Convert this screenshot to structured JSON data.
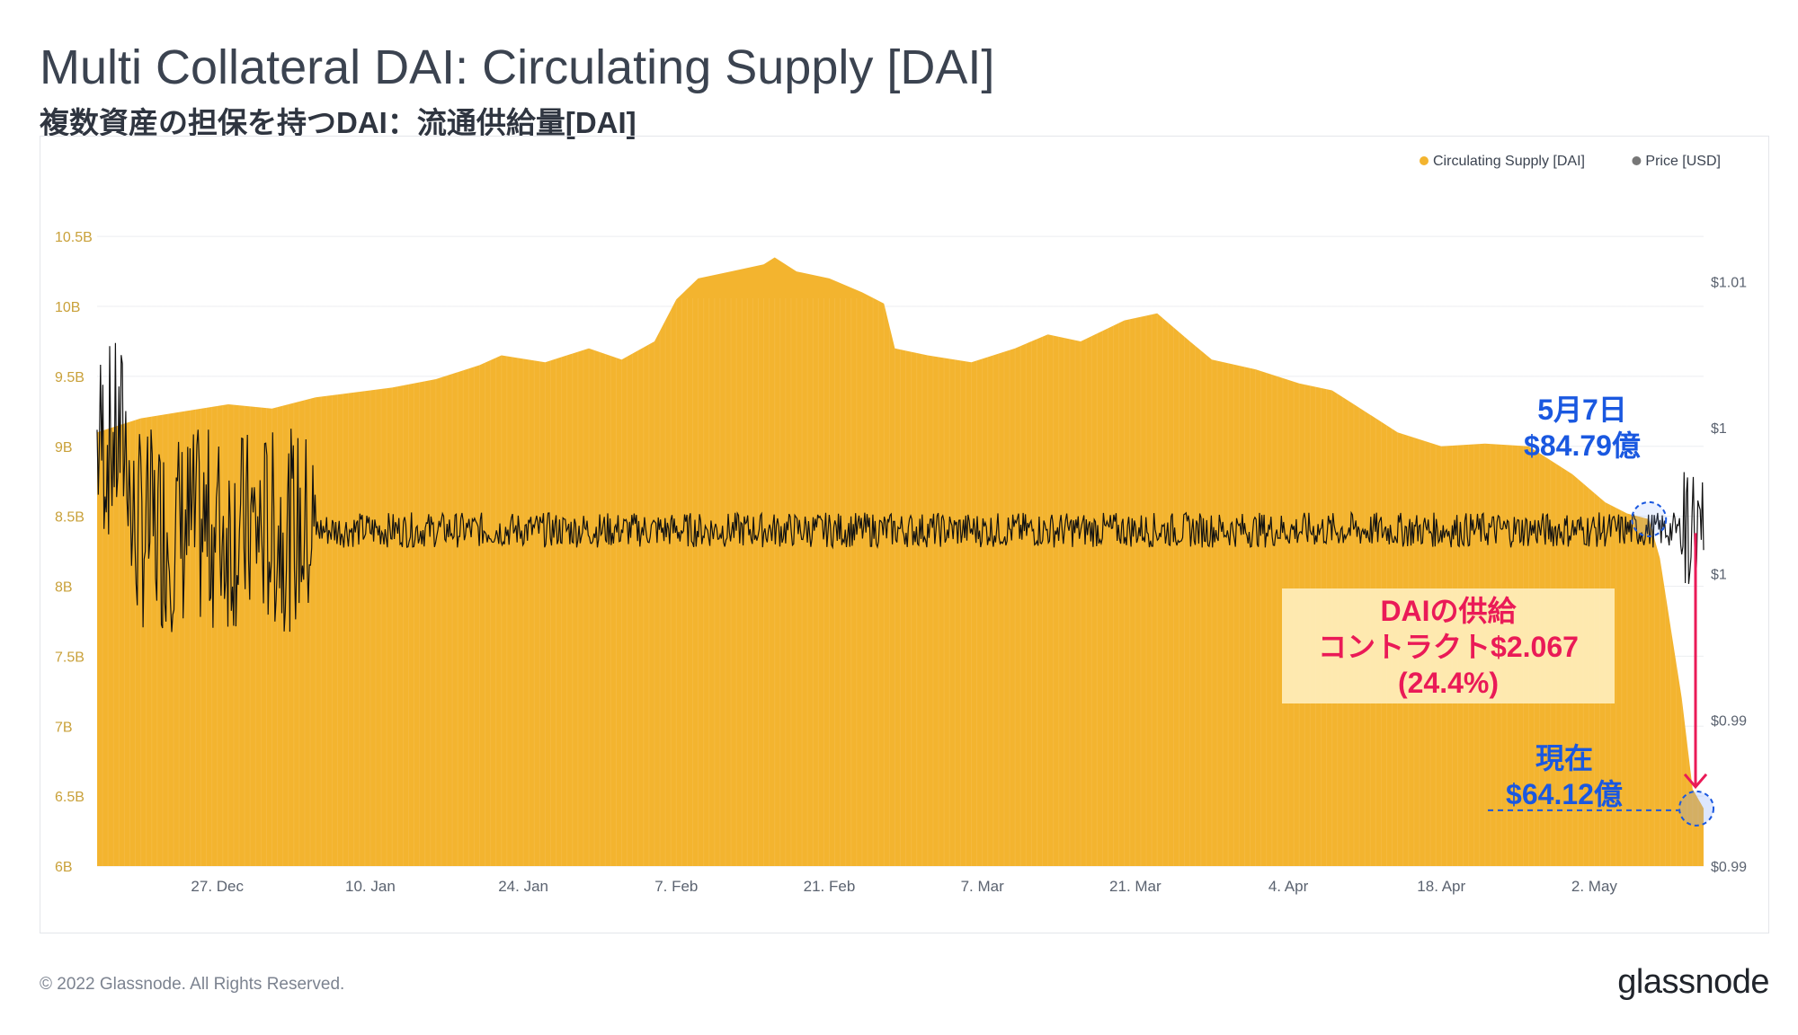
{
  "header": {
    "title": "Multi Collateral DAI: Circulating Supply [DAI]",
    "subtitle": "複数資産の担保を持つDAI：流通供給量[DAI]"
  },
  "footer": {
    "copyright": "© 2022 Glassnode. All Rights Reserved.",
    "logo": "glassnode"
  },
  "annotations": {
    "may7_date": "5月7日",
    "may7_value": "$84.79億",
    "drop_line1": "DAIの供給",
    "drop_line2": "コントラクト$2.067",
    "drop_line3": "(24.4%)",
    "now_label": "現在",
    "now_value": "$64.12億"
  },
  "colors": {
    "supply": "#f3b42f",
    "price": "#111111",
    "legend_price_dot": "#777777",
    "axis_left_text": "#c9a13a",
    "axis_text": "#5b6370",
    "highlight_blue": "#1a58e0",
    "highlight_pink": "#ea1a57"
  },
  "chart_data": {
    "type": "area",
    "legend": [
      {
        "name": "Circulating Supply [DAI]",
        "color": "#f3b42f"
      },
      {
        "name": "Price [USD]",
        "color": "#777777"
      }
    ],
    "legend_placement": "top-right",
    "x_tick_labels": [
      "27. Dec",
      "10. Jan",
      "24. Jan",
      "7. Feb",
      "21. Feb",
      "7. Mar",
      "21. Mar",
      "4. Apr",
      "18. Apr",
      "2. May"
    ],
    "x_tick_dates": [
      "2021-12-27",
      "2022-01-10",
      "2022-01-24",
      "2022-02-07",
      "2022-02-21",
      "2022-03-07",
      "2022-03-21",
      "2022-04-04",
      "2022-04-18",
      "2022-05-02"
    ],
    "x_range": [
      "2021-12-16",
      "2022-05-12"
    ],
    "y_left": {
      "label": "Circulating Supply [DAI]",
      "ticks": [
        "6B",
        "6.5B",
        "7B",
        "7.5B",
        "8B",
        "8.5B",
        "9B",
        "9.5B",
        "10B",
        "10.5B"
      ],
      "range_billion": [
        6,
        10.7
      ]
    },
    "y_right": {
      "label": "Price [USD]",
      "ticks": [
        "$0.99",
        "$0.99",
        "$1",
        "$1",
        "$1.01"
      ],
      "tick_values": [
        0.985,
        0.99,
        0.995,
        1.0,
        1.005
      ],
      "range_usd": [
        0.985,
        1.0075
      ]
    },
    "grid": true,
    "series": [
      {
        "name": "Circulating Supply [DAI]",
        "unit": "billion DAI",
        "points": [
          [
            "2021-12-16",
            9.1
          ],
          [
            "2021-12-20",
            9.2
          ],
          [
            "2021-12-24",
            9.25
          ],
          [
            "2021-12-28",
            9.3
          ],
          [
            "2022-01-01",
            9.27
          ],
          [
            "2022-01-05",
            9.35
          ],
          [
            "2022-01-08",
            9.38
          ],
          [
            "2022-01-12",
            9.42
          ],
          [
            "2022-01-16",
            9.48
          ],
          [
            "2022-01-20",
            9.58
          ],
          [
            "2022-01-22",
            9.65
          ],
          [
            "2022-01-26",
            9.6
          ],
          [
            "2022-01-30",
            9.7
          ],
          [
            "2022-02-02",
            9.62
          ],
          [
            "2022-02-05",
            9.75
          ],
          [
            "2022-02-07",
            10.05
          ],
          [
            "2022-02-09",
            10.2
          ],
          [
            "2022-02-12",
            10.25
          ],
          [
            "2022-02-15",
            10.3
          ],
          [
            "2022-02-16",
            10.35
          ],
          [
            "2022-02-18",
            10.25
          ],
          [
            "2022-02-21",
            10.2
          ],
          [
            "2022-02-24",
            10.1
          ],
          [
            "2022-02-26",
            10.02
          ],
          [
            "2022-02-27",
            9.7
          ],
          [
            "2022-03-02",
            9.65
          ],
          [
            "2022-03-06",
            9.6
          ],
          [
            "2022-03-10",
            9.7
          ],
          [
            "2022-03-13",
            9.8
          ],
          [
            "2022-03-16",
            9.75
          ],
          [
            "2022-03-20",
            9.9
          ],
          [
            "2022-03-23",
            9.95
          ],
          [
            "2022-03-26",
            9.75
          ],
          [
            "2022-03-28",
            9.62
          ],
          [
            "2022-04-01",
            9.55
          ],
          [
            "2022-04-05",
            9.45
          ],
          [
            "2022-04-08",
            9.4
          ],
          [
            "2022-04-10",
            9.3
          ],
          [
            "2022-04-14",
            9.1
          ],
          [
            "2022-04-18",
            9.0
          ],
          [
            "2022-04-22",
            9.02
          ],
          [
            "2022-04-26",
            9.0
          ],
          [
            "2022-04-30",
            8.8
          ],
          [
            "2022-05-03",
            8.6
          ],
          [
            "2022-05-05",
            8.52
          ],
          [
            "2022-05-07",
            8.479
          ],
          [
            "2022-05-08",
            8.2
          ],
          [
            "2022-05-09",
            7.7
          ],
          [
            "2022-05-10",
            7.2
          ],
          [
            "2022-05-11",
            6.55
          ],
          [
            "2022-05-12",
            6.412
          ]
        ]
      },
      {
        "name": "Price [USD]",
        "unit": "USD",
        "approx_baseline": 0.9965,
        "notes": "High-frequency noise around ~$0.9965; large swings mid-Dec to early Jan; spike to ~$1.007 and dip to ~$0.993 around May 10–11"
      }
    ],
    "highlights": [
      {
        "date": "2022-05-07",
        "value_billion": 8.479
      },
      {
        "date": "2022-05-12",
        "value_billion": 6.412
      }
    ]
  }
}
